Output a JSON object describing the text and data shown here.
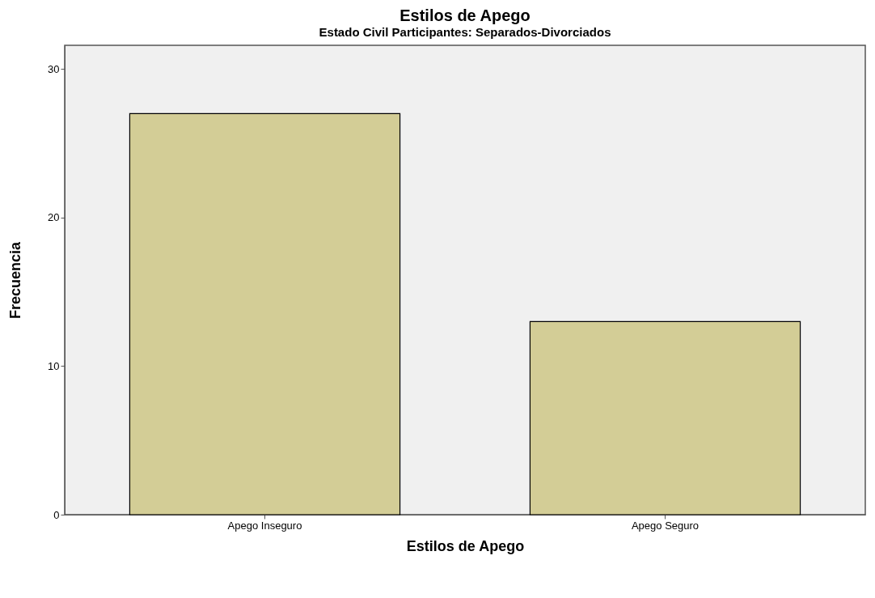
{
  "chart_data": {
    "type": "bar",
    "title": "Estilos de Apego",
    "subtitle": "Estado Civil Participantes: Separados-Divorciados",
    "xlabel": "Estilos de Apego",
    "ylabel": "Frecuencia",
    "categories": [
      "Apego Inseguro",
      "Apego Seguro"
    ],
    "values": [
      27,
      13
    ],
    "color": "#d3cd96",
    "ylim": [
      0,
      31.6
    ],
    "yticks": [
      0,
      10,
      20,
      30
    ],
    "grid": false
  }
}
